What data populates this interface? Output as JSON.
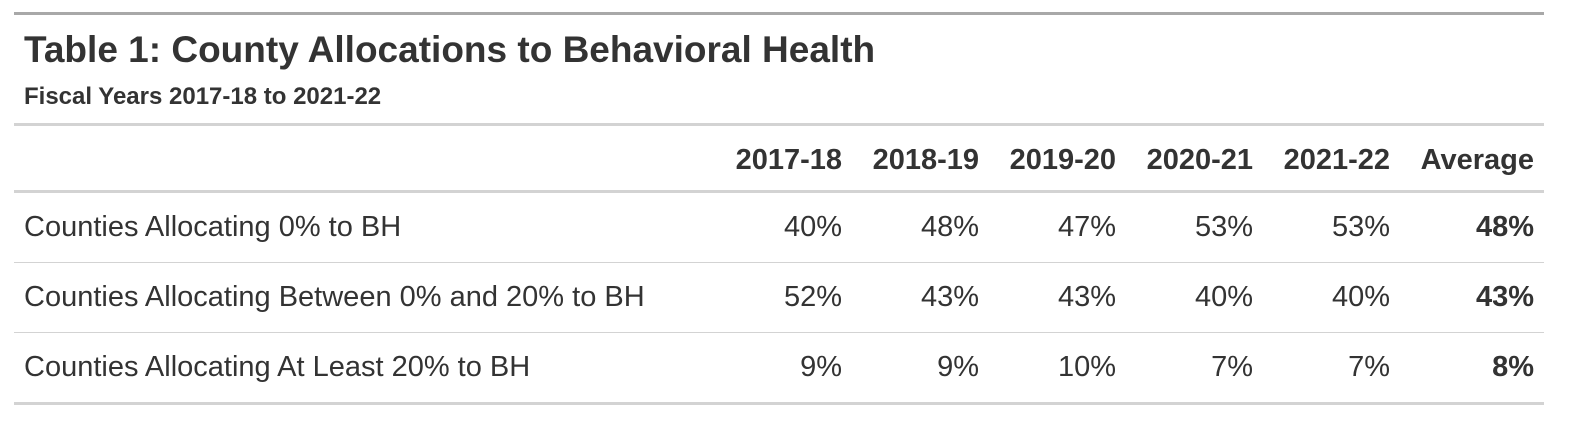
{
  "title": "Table 1: County Allocations to Behavioral Health",
  "subtitle": "Fiscal Years 2017-18 to 2021-22",
  "table": {
    "columns": [
      "",
      "2017-18",
      "2018-19",
      "2019-20",
      "2020-21",
      "2021-22",
      "Average"
    ],
    "rows": [
      {
        "label": "Counties Allocating 0% to BH",
        "values": [
          "40%",
          "48%",
          "47%",
          "53%",
          "53%"
        ],
        "average": "48%"
      },
      {
        "label": "Counties Allocating Between 0% and 20% to BH",
        "values": [
          "52%",
          "43%",
          "43%",
          "40%",
          "40%"
        ],
        "average": "43%"
      },
      {
        "label": "Counties Allocating At Least 20% to BH",
        "values": [
          "9%",
          "9%",
          "10%",
          "7%",
          "7%"
        ],
        "average": "8%"
      }
    ]
  }
}
